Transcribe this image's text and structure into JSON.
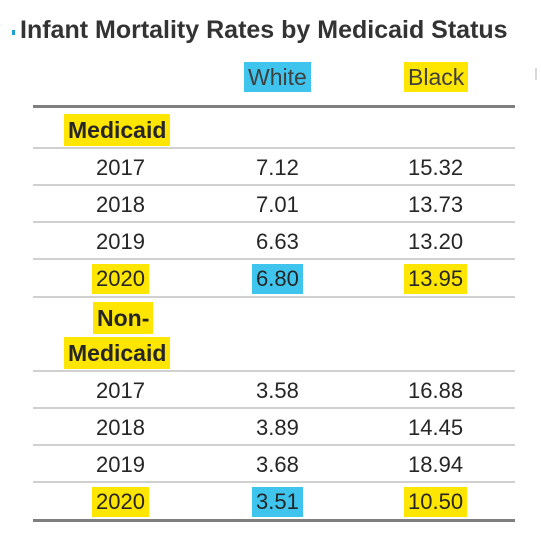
{
  "title": "Infant Mortality Rates by Medicaid Status",
  "columns": {
    "white": "White",
    "black": "Black"
  },
  "highlight_colors": {
    "white_column": "#3fc4ee",
    "black_column": "#ffe600",
    "group_label": "#ffe600"
  },
  "groups": [
    {
      "label_lines": [
        "Medicaid"
      ],
      "rows": [
        {
          "year": "2017",
          "white": "7.12",
          "black": "15.32",
          "highlighted": false
        },
        {
          "year": "2018",
          "white": "7.01",
          "black": "13.73",
          "highlighted": false
        },
        {
          "year": "2019",
          "white": "6.63",
          "black": "13.20",
          "highlighted": false
        },
        {
          "year": "2020",
          "white": "6.80",
          "black": "13.95",
          "highlighted": true
        }
      ]
    },
    {
      "label_lines": [
        "Non-",
        "Medicaid"
      ],
      "rows": [
        {
          "year": "2017",
          "white": "3.58",
          "black": "16.88",
          "highlighted": false
        },
        {
          "year": "2018",
          "white": "3.89",
          "black": "14.45",
          "highlighted": false
        },
        {
          "year": "2019",
          "white": "3.68",
          "black": "18.94",
          "highlighted": false
        },
        {
          "year": "2020",
          "white": "3.51",
          "black": "10.50",
          "highlighted": true
        }
      ]
    }
  ]
}
